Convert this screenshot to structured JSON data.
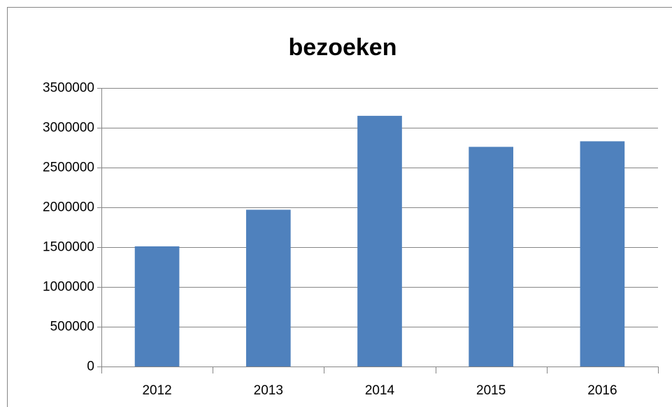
{
  "chart_data": {
    "type": "bar",
    "title": "bezoeken",
    "categories": [
      "2012",
      "2013",
      "2014",
      "2015",
      "2016"
    ],
    "values": [
      1510000,
      1970000,
      3150000,
      2760000,
      2830000
    ],
    "color": "#4f81bd",
    "ylim": [
      0,
      3500000
    ],
    "yticks": [
      0,
      500000,
      1000000,
      1500000,
      2000000,
      2500000,
      3000000,
      3500000
    ],
    "grid": true
  }
}
